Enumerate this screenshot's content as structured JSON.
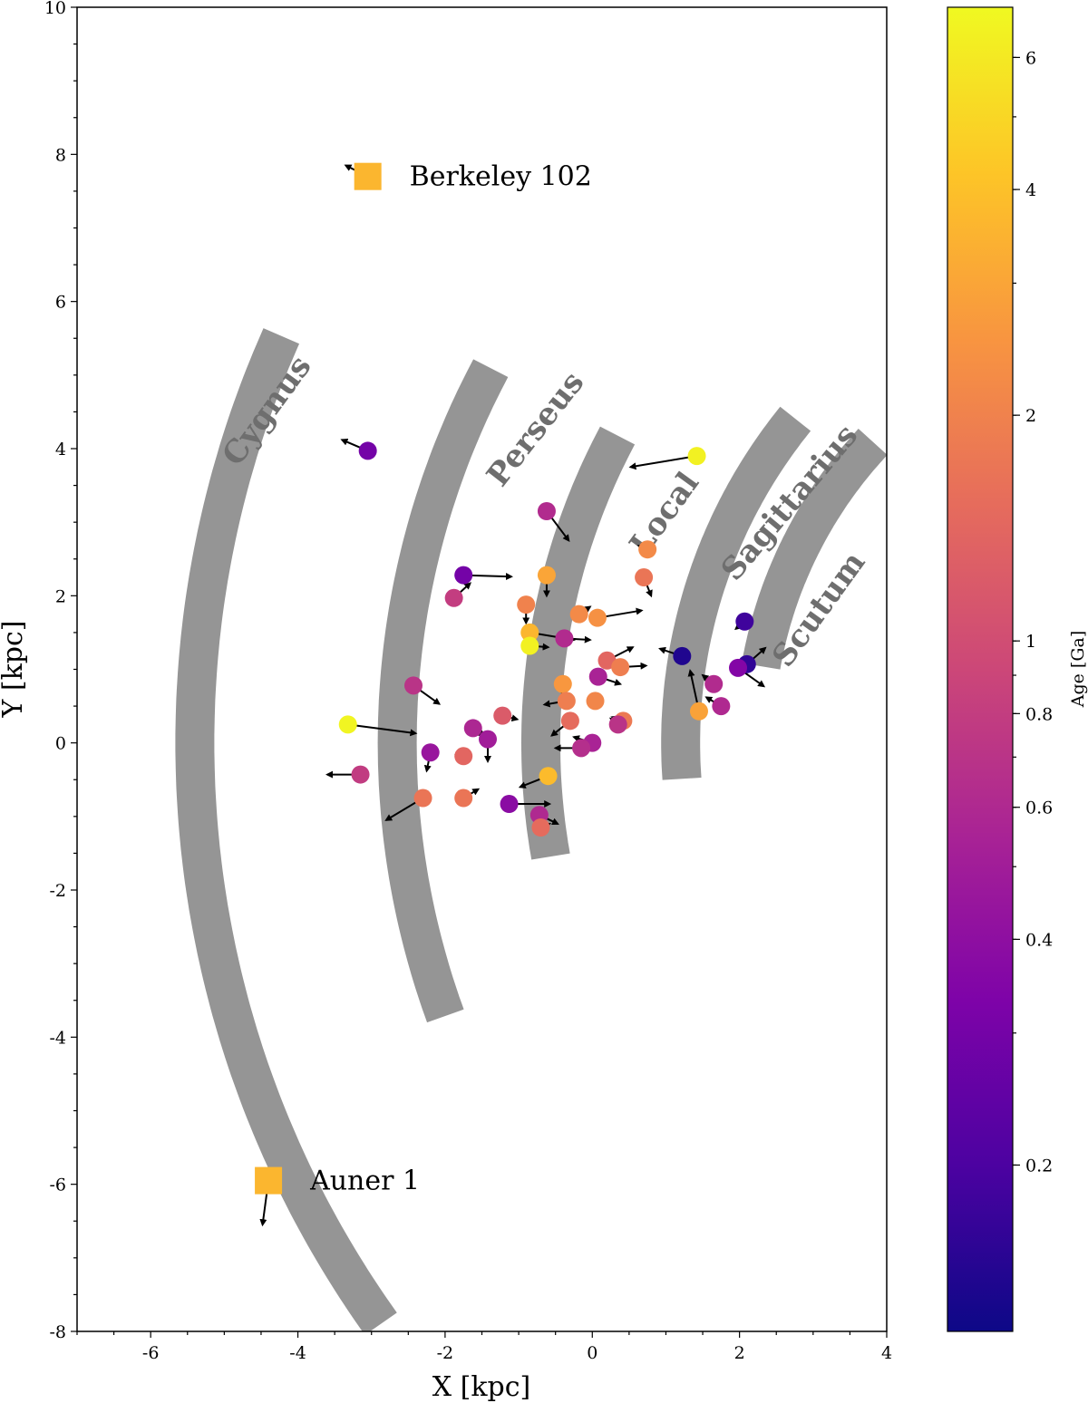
{
  "chart_data": {
    "type": "scatter",
    "title": "",
    "xlabel": "X [kpc]",
    "ylabel": "Y [kpc]",
    "xlim": [
      -7,
      4
    ],
    "ylim": [
      -8,
      10
    ],
    "xticks": [
      "-6",
      "-4",
      "-2",
      "0",
      "2",
      "4"
    ],
    "yticks": [
      "-8",
      "-6",
      "-4",
      "-2",
      "0",
      "2",
      "4",
      "6",
      "8",
      "10"
    ],
    "grid": false,
    "colorbar": {
      "label": "Age [Ga]",
      "scale": "log",
      "range": [
        0.12,
        7.0
      ],
      "colormap": "plasma",
      "tick_values": [
        0.2,
        0.4,
        0.6,
        0.8,
        1,
        2,
        4,
        6
      ],
      "tick_labels": [
        "0.2",
        "0.4",
        "0.6",
        "0.8",
        "1",
        "2",
        "4",
        "6"
      ]
    },
    "arms": [
      {
        "name": "Cygnus",
        "color": "#959595"
      },
      {
        "name": "Perseus",
        "color": "#959595"
      },
      {
        "name": "Local",
        "color": "#959595"
      },
      {
        "name": "Sagittarius",
        "color": "#959595"
      },
      {
        "name": "Scutum",
        "color": "#959595"
      }
    ],
    "labeled_clusters": [
      {
        "name": "Berkeley 102",
        "x": -3.05,
        "y": 7.7,
        "age": 3.6,
        "vx": -0.3,
        "vy": 0.15,
        "marker": "square"
      },
      {
        "name": "Auner 1",
        "x": -4.4,
        "y": -5.95,
        "age": 3.6,
        "vx": -0.08,
        "vy": -0.6,
        "marker": "square"
      }
    ],
    "clusters": [
      {
        "x": -3.05,
        "y": 3.97,
        "age": 0.3,
        "vx": -0.35,
        "vy": 0.15
      },
      {
        "x": 1.42,
        "y": 3.9,
        "age": 6.5,
        "vx": -0.9,
        "vy": -0.15
      },
      {
        "x": -0.62,
        "y": 3.15,
        "age": 0.62,
        "vx": 0.3,
        "vy": -0.4
      },
      {
        "x": 0.75,
        "y": 2.63,
        "age": 2.2,
        "vx": -0.12,
        "vy": 0.05
      },
      {
        "x": -1.75,
        "y": 2.28,
        "age": 0.3,
        "vx": 0.65,
        "vy": -0.02
      },
      {
        "x": -0.62,
        "y": 2.28,
        "age": 3.0,
        "vx": 0.0,
        "vy": -0.28
      },
      {
        "x": 0.7,
        "y": 2.25,
        "age": 1.7,
        "vx": 0.1,
        "vy": -0.25
      },
      {
        "x": -1.88,
        "y": 1.97,
        "age": 0.8,
        "vx": 0.22,
        "vy": 0.2
      },
      {
        "x": -0.9,
        "y": 1.88,
        "age": 2.0,
        "vx": 0.0,
        "vy": -0.25
      },
      {
        "x": -0.18,
        "y": 1.75,
        "age": 2.2,
        "vx": 0.15,
        "vy": 0.1
      },
      {
        "x": 0.07,
        "y": 1.7,
        "age": 2.4,
        "vx": 0.6,
        "vy": 0.1
      },
      {
        "x": -0.85,
        "y": 1.5,
        "age": 3.6,
        "vx": 0.6,
        "vy": -0.1
      },
      {
        "x": -0.38,
        "y": 1.42,
        "age": 0.62,
        "vx": 0.35,
        "vy": -0.02
      },
      {
        "x": -0.85,
        "y": 1.32,
        "age": 6.5,
        "vx": 0.25,
        "vy": -0.02
      },
      {
        "x": 1.22,
        "y": 1.18,
        "age": 0.14,
        "vx": -0.3,
        "vy": 0.1
      },
      {
        "x": 2.07,
        "y": 1.65,
        "age": 0.18,
        "vx": -0.12,
        "vy": -0.1
      },
      {
        "x": 0.2,
        "y": 1.12,
        "age": 1.4,
        "vx": 0.35,
        "vy": 0.18
      },
      {
        "x": 0.38,
        "y": 1.03,
        "age": 1.9,
        "vx": 0.35,
        "vy": 0.02
      },
      {
        "x": 2.1,
        "y": 1.07,
        "age": 0.16,
        "vx": 0.25,
        "vy": 0.22
      },
      {
        "x": 1.98,
        "y": 1.02,
        "age": 0.35,
        "vx": 0.35,
        "vy": -0.25
      },
      {
        "x": 0.08,
        "y": 0.9,
        "age": 0.55,
        "vx": 0.3,
        "vy": -0.1
      },
      {
        "x": -0.4,
        "y": 0.8,
        "age": 2.6,
        "vx": 0.0,
        "vy": -0.15
      },
      {
        "x": 1.65,
        "y": 0.8,
        "age": 0.62,
        "vx": -0.15,
        "vy": 0.12
      },
      {
        "x": -2.43,
        "y": 0.78,
        "age": 0.7,
        "vx": 0.35,
        "vy": -0.25
      },
      {
        "x": -0.35,
        "y": 0.57,
        "age": 1.9,
        "vx": -0.3,
        "vy": -0.05
      },
      {
        "x": 0.04,
        "y": 0.57,
        "age": 2.1,
        "vx": -0.05,
        "vy": -0.08
      },
      {
        "x": 1.75,
        "y": 0.5,
        "age": 0.6,
        "vx": -0.2,
        "vy": 0.12
      },
      {
        "x": 1.45,
        "y": 0.43,
        "age": 2.9,
        "vx": -0.12,
        "vy": 0.55
      },
      {
        "x": -1.22,
        "y": 0.37,
        "age": 1.2,
        "vx": 0.2,
        "vy": -0.05
      },
      {
        "x": -0.3,
        "y": 0.3,
        "age": 1.5,
        "vx": -0.25,
        "vy": -0.2
      },
      {
        "x": 0.42,
        "y": 0.3,
        "age": 1.8,
        "vx": -0.15,
        "vy": 0.05
      },
      {
        "x": 0.35,
        "y": 0.25,
        "age": 0.7,
        "vx": -0.1,
        "vy": 0.08
      },
      {
        "x": -3.32,
        "y": 0.25,
        "age": 6.7,
        "vx": 0.92,
        "vy": -0.12
      },
      {
        "x": -1.62,
        "y": 0.2,
        "age": 0.58,
        "vx": 0.15,
        "vy": -0.1
      },
      {
        "x": -1.42,
        "y": 0.05,
        "age": 0.5,
        "vx": 0.0,
        "vy": -0.3
      },
      {
        "x": 0.0,
        "y": 0.0,
        "age": 0.55,
        "vx": -0.25,
        "vy": 0.08
      },
      {
        "x": -0.15,
        "y": -0.07,
        "age": 0.65,
        "vx": -0.35,
        "vy": 0.0
      },
      {
        "x": -2.2,
        "y": -0.13,
        "age": 0.45,
        "vx": -0.05,
        "vy": -0.25
      },
      {
        "x": -1.75,
        "y": -0.18,
        "age": 1.4,
        "vx": -0.1,
        "vy": 0.02
      },
      {
        "x": -3.15,
        "y": -0.43,
        "age": 0.78,
        "vx": -0.45,
        "vy": 0.0
      },
      {
        "x": -0.6,
        "y": -0.45,
        "age": 3.8,
        "vx": -0.38,
        "vy": -0.15
      },
      {
        "x": -2.3,
        "y": -0.75,
        "age": 1.7,
        "vx": -0.5,
        "vy": -0.3
      },
      {
        "x": -1.75,
        "y": -0.75,
        "age": 1.7,
        "vx": 0.2,
        "vy": 0.12
      },
      {
        "x": -1.13,
        "y": -0.83,
        "age": 0.38,
        "vx": 0.55,
        "vy": 0.0
      },
      {
        "x": -0.72,
        "y": -0.98,
        "age": 0.6,
        "vx": 0.25,
        "vy": -0.12
      },
      {
        "x": -0.7,
        "y": -1.15,
        "age": 1.5,
        "vx": 0.12,
        "vy": 0.05
      }
    ]
  }
}
